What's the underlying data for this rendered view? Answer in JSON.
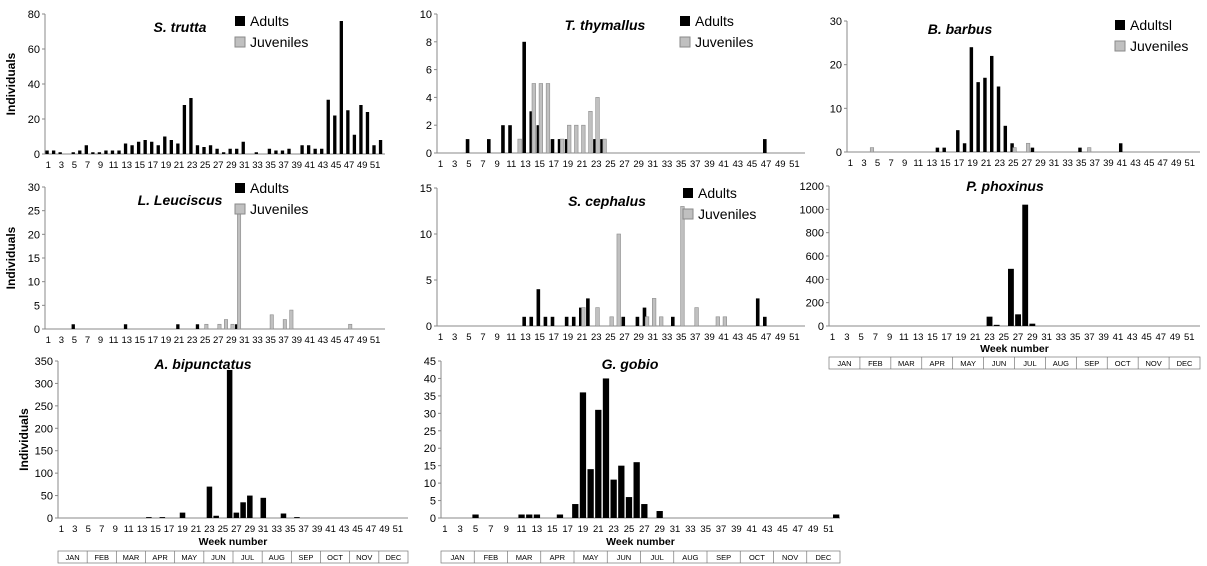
{
  "figure": {
    "y_label": "Individuals",
    "x_label": "Week number",
    "months": [
      "JAN",
      "FEB",
      "MAR",
      "APR",
      "MAY",
      "JUN",
      "JUL",
      "AUG",
      "SEP",
      "OCT",
      "NOV",
      "DEC"
    ],
    "colors": {
      "adults": "#000000",
      "juveniles": "#c0c0c0",
      "axis": "#888888",
      "text": "#000000"
    }
  },
  "chart_data": [
    {
      "type": "bar",
      "title": "S. trutta",
      "legend": [
        "Adults",
        "Juveniles"
      ],
      "legend_position": "top-right",
      "x_ticks": [
        "1",
        "3",
        "5",
        "7",
        "9",
        "11",
        "13",
        "15",
        "17",
        "19",
        "21",
        "23",
        "25",
        "27",
        "29",
        "31",
        "33",
        "35",
        "37",
        "39",
        "41",
        "43",
        "45",
        "47",
        "49",
        "51"
      ],
      "y_ticks": [
        "0",
        "20",
        "40",
        "60",
        "80"
      ],
      "ylim": [
        0,
        80
      ],
      "series": [
        {
          "name": "Adults",
          "points": [
            [
              1,
              2
            ],
            [
              2,
              2
            ],
            [
              3,
              1
            ],
            [
              5,
              1
            ],
            [
              6,
              2
            ],
            [
              7,
              5
            ],
            [
              8,
              1
            ],
            [
              9,
              1
            ],
            [
              10,
              2
            ],
            [
              11,
              2
            ],
            [
              12,
              2
            ],
            [
              13,
              6
            ],
            [
              14,
              5
            ],
            [
              15,
              7
            ],
            [
              16,
              8
            ],
            [
              17,
              7
            ],
            [
              18,
              5
            ],
            [
              19,
              10
            ],
            [
              20,
              8
            ],
            [
              21,
              6
            ],
            [
              22,
              28
            ],
            [
              23,
              32
            ],
            [
              24,
              5
            ],
            [
              25,
              4
            ],
            [
              26,
              5
            ],
            [
              27,
              3
            ],
            [
              28,
              1
            ],
            [
              29,
              3
            ],
            [
              30,
              3
            ],
            [
              31,
              7
            ],
            [
              33,
              1
            ],
            [
              35,
              3
            ],
            [
              36,
              2
            ],
            [
              37,
              2
            ],
            [
              38,
              3
            ],
            [
              40,
              5
            ],
            [
              41,
              5
            ],
            [
              42,
              3
            ],
            [
              43,
              3
            ],
            [
              44,
              31
            ],
            [
              45,
              22
            ],
            [
              46,
              76
            ],
            [
              47,
              25
            ],
            [
              48,
              11
            ],
            [
              49,
              28
            ],
            [
              50,
              24
            ],
            [
              51,
              5
            ],
            [
              52,
              8
            ]
          ]
        },
        {
          "name": "Juveniles",
          "points": []
        }
      ]
    },
    {
      "type": "bar",
      "title": "T. thymallus",
      "legend": [
        "Adults",
        "Juveniles"
      ],
      "legend_position": "top-right",
      "x_ticks": [
        "1",
        "3",
        "5",
        "7",
        "9",
        "11",
        "13",
        "15",
        "17",
        "19",
        "21",
        "23",
        "25",
        "27",
        "29",
        "31",
        "33",
        "35",
        "37",
        "39",
        "41",
        "43",
        "45",
        "47",
        "49",
        "51"
      ],
      "y_ticks": [
        "0",
        "2",
        "4",
        "6",
        "8",
        "10"
      ],
      "ylim": [
        0,
        10
      ],
      "series": [
        {
          "name": "Adults",
          "points": [
            [
              5,
              1
            ],
            [
              8,
              1
            ],
            [
              10,
              2
            ],
            [
              11,
              2
            ],
            [
              13,
              8
            ],
            [
              14,
              3
            ],
            [
              15,
              2
            ],
            [
              17,
              1
            ],
            [
              18,
              1
            ],
            [
              19,
              1
            ],
            [
              23,
              1
            ],
            [
              24,
              1
            ],
            [
              47,
              1
            ]
          ]
        },
        {
          "name": "Juveniles",
          "points": [
            [
              12,
              1
            ],
            [
              14,
              5
            ],
            [
              15,
              5
            ],
            [
              16,
              5
            ],
            [
              18,
              1
            ],
            [
              19,
              2
            ],
            [
              20,
              2
            ],
            [
              21,
              2
            ],
            [
              22,
              3
            ],
            [
              23,
              4
            ],
            [
              24,
              1
            ]
          ]
        }
      ]
    },
    {
      "type": "bar",
      "title": "B. barbus",
      "legend": [
        "Adultsl",
        "Juveniles"
      ],
      "legend_position": "top-right",
      "x_ticks": [
        "1",
        "3",
        "5",
        "7",
        "9",
        "11",
        "13",
        "15",
        "17",
        "19",
        "21",
        "23",
        "25",
        "27",
        "29",
        "31",
        "33",
        "35",
        "37",
        "39",
        "41",
        "43",
        "45",
        "47",
        "49",
        "51"
      ],
      "y_ticks": [
        "0",
        "10",
        "20",
        "30"
      ],
      "ylim": [
        0,
        30
      ],
      "series": [
        {
          "name": "Adultsl",
          "points": [
            [
              14,
              1
            ],
            [
              15,
              1
            ],
            [
              17,
              5
            ],
            [
              18,
              2
            ],
            [
              19,
              24
            ],
            [
              20,
              16
            ],
            [
              21,
              17
            ],
            [
              22,
              22
            ],
            [
              23,
              15
            ],
            [
              24,
              6
            ],
            [
              25,
              2
            ],
            [
              28,
              1
            ],
            [
              35,
              1
            ],
            [
              41,
              2
            ]
          ]
        },
        {
          "name": "Juveniles",
          "points": [
            [
              4,
              1
            ],
            [
              25,
              1
            ],
            [
              27,
              2
            ],
            [
              36,
              1
            ]
          ]
        }
      ]
    },
    {
      "type": "bar",
      "title": "L. Leuciscus",
      "legend": [
        "Adults",
        "Juveniles"
      ],
      "legend_position": "top-right",
      "x_ticks": [
        "1",
        "3",
        "5",
        "7",
        "9",
        "11",
        "13",
        "15",
        "17",
        "19",
        "21",
        "23",
        "25",
        "27",
        "29",
        "31",
        "33",
        "35",
        "37",
        "39",
        "41",
        "43",
        "45",
        "47",
        "49",
        "51"
      ],
      "y_ticks": [
        "0",
        "5",
        "10",
        "15",
        "20",
        "25",
        "30"
      ],
      "ylim": [
        0,
        30
      ],
      "series": [
        {
          "name": "Adults",
          "points": [
            [
              5,
              1
            ],
            [
              13,
              1
            ],
            [
              21,
              1
            ],
            [
              24,
              1
            ],
            [
              30,
              1
            ]
          ]
        },
        {
          "name": "Juveniles",
          "points": [
            [
              25,
              1
            ],
            [
              27,
              1
            ],
            [
              28,
              2
            ],
            [
              29,
              1
            ],
            [
              30,
              25
            ],
            [
              35,
              3
            ],
            [
              37,
              2
            ],
            [
              38,
              4
            ],
            [
              47,
              1
            ]
          ]
        }
      ]
    },
    {
      "type": "bar",
      "title": "S. cephalus",
      "legend": [
        "Adults",
        "Juveniles"
      ],
      "legend_position": "top-right",
      "x_ticks": [
        "1",
        "3",
        "5",
        "7",
        "9",
        "11",
        "13",
        "15",
        "17",
        "19",
        "21",
        "23",
        "25",
        "27",
        "29",
        "31",
        "33",
        "35",
        "37",
        "39",
        "41",
        "43",
        "45",
        "47",
        "49",
        "51"
      ],
      "y_ticks": [
        "0",
        "5",
        "10",
        "15"
      ],
      "ylim": [
        0,
        15
      ],
      "series": [
        {
          "name": "Adults",
          "points": [
            [
              13,
              1
            ],
            [
              14,
              1
            ],
            [
              15,
              4
            ],
            [
              16,
              1
            ],
            [
              17,
              1
            ],
            [
              19,
              1
            ],
            [
              20,
              1
            ],
            [
              21,
              2
            ],
            [
              22,
              3
            ],
            [
              27,
              1
            ],
            [
              29,
              1
            ],
            [
              30,
              2
            ],
            [
              34,
              1
            ],
            [
              46,
              3
            ],
            [
              47,
              1
            ]
          ]
        },
        {
          "name": "Juveniles",
          "points": [
            [
              21,
              2
            ],
            [
              23,
              2
            ],
            [
              25,
              1
            ],
            [
              26,
              10
            ],
            [
              30,
              1
            ],
            [
              31,
              3
            ],
            [
              32,
              1
            ],
            [
              35,
              13
            ],
            [
              37,
              2
            ],
            [
              40,
              1
            ],
            [
              41,
              1
            ]
          ]
        }
      ]
    },
    {
      "type": "bar",
      "title": "P. phoxinus",
      "legend": [],
      "x_ticks": [
        "1",
        "3",
        "5",
        "7",
        "9",
        "11",
        "13",
        "15",
        "17",
        "19",
        "21",
        "23",
        "25",
        "27",
        "29",
        "31",
        "33",
        "35",
        "37",
        "39",
        "41",
        "43",
        "45",
        "47",
        "49",
        "51"
      ],
      "y_ticks": [
        "0",
        "200",
        "400",
        "600",
        "800",
        "1000",
        "1200"
      ],
      "ylim": [
        0,
        1200
      ],
      "series": [
        {
          "name": "Adults",
          "points": [
            [
              23,
              80
            ],
            [
              24,
              10
            ],
            [
              26,
              490
            ],
            [
              27,
              100
            ],
            [
              28,
              1040
            ],
            [
              29,
              20
            ]
          ]
        }
      ]
    },
    {
      "type": "bar",
      "title": "A. bipunctatus",
      "legend": [],
      "x_ticks": [
        "1",
        "3",
        "5",
        "7",
        "9",
        "11",
        "13",
        "15",
        "17",
        "19",
        "21",
        "23",
        "25",
        "27",
        "29",
        "31",
        "33",
        "35",
        "37",
        "39",
        "41",
        "43",
        "45",
        "47",
        "49",
        "51"
      ],
      "y_ticks": [
        "0",
        "50",
        "100",
        "150",
        "200",
        "250",
        "300",
        "350"
      ],
      "ylim": [
        0,
        350
      ],
      "series": [
        {
          "name": "Adults",
          "points": [
            [
              14,
              2
            ],
            [
              16,
              2
            ],
            [
              19,
              12
            ],
            [
              23,
              70
            ],
            [
              24,
              5
            ],
            [
              26,
              330
            ],
            [
              27,
              12
            ],
            [
              28,
              35
            ],
            [
              29,
              50
            ],
            [
              31,
              45
            ],
            [
              34,
              10
            ],
            [
              36,
              2
            ]
          ]
        }
      ]
    },
    {
      "type": "bar",
      "title": "G. gobio",
      "legend": [],
      "x_ticks": [
        "1",
        "3",
        "5",
        "7",
        "9",
        "11",
        "13",
        "15",
        "17",
        "19",
        "21",
        "23",
        "25",
        "27",
        "29",
        "31",
        "33",
        "35",
        "37",
        "39",
        "41",
        "43",
        "45",
        "47",
        "49",
        "51"
      ],
      "y_ticks": [
        "0",
        "5",
        "10",
        "15",
        "20",
        "25",
        "30",
        "35",
        "40",
        "45"
      ],
      "ylim": [
        0,
        45
      ],
      "series": [
        {
          "name": "Adults",
          "points": [
            [
              5,
              1
            ],
            [
              11,
              1
            ],
            [
              12,
              1
            ],
            [
              13,
              1
            ],
            [
              16,
              1
            ],
            [
              18,
              4
            ],
            [
              19,
              36
            ],
            [
              20,
              14
            ],
            [
              21,
              31
            ],
            [
              22,
              40
            ],
            [
              23,
              11
            ],
            [
              24,
              15
            ],
            [
              25,
              6
            ],
            [
              26,
              16
            ],
            [
              27,
              4
            ],
            [
              29,
              2
            ],
            [
              52,
              1
            ]
          ]
        }
      ]
    }
  ]
}
